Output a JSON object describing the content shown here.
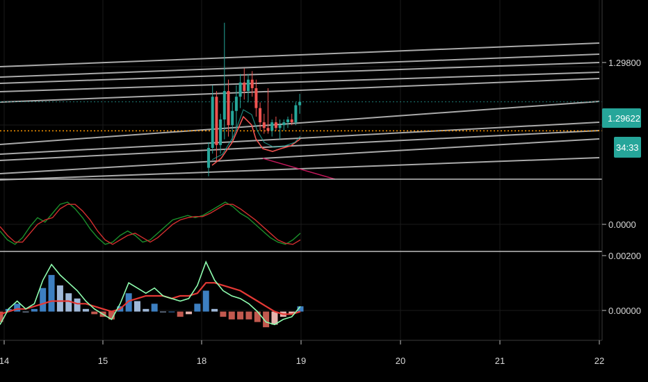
{
  "colors": {
    "background": "#000000",
    "grid": "#1a1a1a",
    "axis_line": "#3a3a3a",
    "pane_separator": "#bfbfbf",
    "channel": "#c8c8c8",
    "bull": "#26a69a",
    "bear": "#ef5350",
    "price_tag": "#26a69a",
    "orange_dotted": "#ff9800",
    "teal_dotted": "#1f7f78",
    "magenta": "#c2185b",
    "stoch_k": "#1b8f2b",
    "stoch_d": "#d32f2f",
    "macd_line": "#8fffb0",
    "signal_line": "#e53935",
    "hist_pos": "#3d7fc1",
    "hist_pos_light": "#9fb8d8",
    "hist_neg": "#c2594f",
    "hist_neg_light": "#e6b4ae"
  },
  "price_axis": {
    "labels": [
      "1.29800",
      "1.29622",
      "34:33"
    ],
    "current_price": "1.29622",
    "countdown": "34:33"
  },
  "stoch_axis": {
    "labels": [
      "0.0000"
    ]
  },
  "macd_axis": {
    "labels": [
      "0.00200",
      "0.00000"
    ]
  },
  "time_axis": {
    "labels": [
      "14",
      "15",
      "18",
      "19",
      "20",
      "21",
      "22"
    ]
  },
  "chart_data": [
    {
      "type": "candlestick",
      "pane": "price",
      "y_ticks": [
        1.298
      ],
      "ylim": [
        1.2935,
        1.2998
      ],
      "current_price": 1.29622,
      "horizontal_level": 1.2952,
      "candles": [
        {
          "o": 1.2939,
          "h": 1.2948,
          "l": 1.2936,
          "c": 1.2946
        },
        {
          "o": 1.2946,
          "h": 1.2968,
          "l": 1.2944,
          "c": 1.2964
        },
        {
          "o": 1.2964,
          "h": 1.2966,
          "l": 1.2941,
          "c": 1.2947
        },
        {
          "o": 1.2947,
          "h": 1.2958,
          "l": 1.2944,
          "c": 1.2956
        },
        {
          "o": 1.2956,
          "h": 1.299,
          "l": 1.2949,
          "c": 1.2966
        },
        {
          "o": 1.2966,
          "h": 1.297,
          "l": 1.295,
          "c": 1.2954
        },
        {
          "o": 1.2954,
          "h": 1.2962,
          "l": 1.2948,
          "c": 1.2959
        },
        {
          "o": 1.2959,
          "h": 1.2968,
          "l": 1.2952,
          "c": 1.2964
        },
        {
          "o": 1.2964,
          "h": 1.2972,
          "l": 1.296,
          "c": 1.2969
        },
        {
          "o": 1.2969,
          "h": 1.2974,
          "l": 1.2963,
          "c": 1.2966
        },
        {
          "o": 1.2966,
          "h": 1.2972,
          "l": 1.2962,
          "c": 1.297
        },
        {
          "o": 1.297,
          "h": 1.2973,
          "l": 1.2964,
          "c": 1.2967
        },
        {
          "o": 1.2967,
          "h": 1.297,
          "l": 1.2957,
          "c": 1.296
        },
        {
          "o": 1.296,
          "h": 1.2962,
          "l": 1.2952,
          "c": 1.2955
        },
        {
          "o": 1.2955,
          "h": 1.2958,
          "l": 1.2951,
          "c": 1.2953
        },
        {
          "o": 1.2953,
          "h": 1.2967,
          "l": 1.2951,
          "c": 1.2952
        },
        {
          "o": 1.2952,
          "h": 1.2956,
          "l": 1.295,
          "c": 1.2955
        },
        {
          "o": 1.2955,
          "h": 1.2957,
          "l": 1.2952,
          "c": 1.2953
        },
        {
          "o": 1.2953,
          "h": 1.2956,
          "l": 1.2949,
          "c": 1.2954
        },
        {
          "o": 1.2954,
          "h": 1.2956,
          "l": 1.2952,
          "c": 1.2955
        },
        {
          "o": 1.2955,
          "h": 1.2957,
          "l": 1.2953,
          "c": 1.2956
        },
        {
          "o": 1.2956,
          "h": 1.2958,
          "l": 1.2954,
          "c": 1.2955
        },
        {
          "o": 1.2955,
          "h": 1.2962,
          "l": 1.2954,
          "c": 1.2961
        },
        {
          "o": 1.2961,
          "h": 1.2965,
          "l": 1.2958,
          "c": 1.29622
        }
      ]
    },
    {
      "type": "line",
      "pane": "stochastic",
      "y_ticks": [
        0.0
      ],
      "series": [
        {
          "color": "stoch_k",
          "values": [
            -0.3,
            -0.7,
            -0.9,
            -0.6,
            -0.1,
            0.3,
            0.1,
            0.5,
            0.9,
            1.0,
            0.7,
            0.3,
            -0.2,
            -0.6,
            -0.9,
            -0.8,
            -0.5,
            -0.3,
            -0.5,
            -0.8,
            -0.7,
            -0.4,
            -0.1,
            0.2,
            0.3,
            0.4,
            0.3,
            0.4,
            0.6,
            0.8,
            1.0,
            0.8,
            0.5,
            0.3,
            0.0,
            -0.3,
            -0.6,
            -0.8,
            -0.9,
            -0.7,
            -0.4
          ]
        },
        {
          "color": "stoch_d",
          "values": [
            -0.1,
            -0.5,
            -0.8,
            -0.8,
            -0.4,
            0.0,
            0.2,
            0.3,
            0.7,
            0.9,
            0.9,
            0.6,
            0.2,
            -0.3,
            -0.7,
            -0.9,
            -0.7,
            -0.5,
            -0.4,
            -0.6,
            -0.8,
            -0.6,
            -0.3,
            0.0,
            0.2,
            0.3,
            0.35,
            0.35,
            0.5,
            0.7,
            0.9,
            0.9,
            0.7,
            0.45,
            0.2,
            -0.1,
            -0.4,
            -0.7,
            -0.85,
            -0.9,
            -0.7
          ]
        }
      ]
    },
    {
      "type": "macd",
      "pane": "macd",
      "y_ticks": [
        0.002,
        0.0
      ],
      "ylim": [
        -0.0011,
        0.0023
      ],
      "macd_line": [
        -0.0005,
        0.0001,
        0.0004,
        0.0001,
        0.0003,
        0.0012,
        0.0018,
        0.0014,
        0.0011,
        0.0008,
        0.0004,
        0.0001,
        -0.0001,
        -0.0003,
        0.0003,
        0.0011,
        0.0009,
        0.0007,
        0.0009,
        0.0006,
        0.0005,
        0.0004,
        0.0005,
        0.001,
        0.0019,
        0.0012,
        0.0008,
        0.0006,
        0.0005,
        0.0003,
        0.0,
        -0.0004,
        -0.0005,
        -0.0003,
        -0.0002,
        0.0002
      ],
      "signal_line": [
        -0.0001,
        0.0,
        0.0001,
        0.0001,
        0.0002,
        0.0003,
        0.0004,
        0.0004,
        0.0004,
        0.0003,
        0.0003,
        0.0002,
        0.0001,
        0.0,
        0.0001,
        0.0004,
        0.0005,
        0.0006,
        0.0006,
        0.0006,
        0.0005,
        0.0006,
        0.0006,
        0.0007,
        0.0011,
        0.0011,
        0.001,
        0.0009,
        0.0008,
        0.0006,
        0.0004,
        0.0002,
        0.0,
        -0.0001,
        -0.0001,
        0.0
      ],
      "histogram": [
        -0.0004,
        0.0001,
        0.0003,
        0.0,
        0.0001,
        0.0009,
        0.0014,
        0.001,
        0.0007,
        0.0005,
        0.0001,
        -0.0001,
        -0.0002,
        -0.0003,
        0.0002,
        0.0007,
        0.0004,
        0.0001,
        0.0003,
        0.0,
        0.0,
        -0.0002,
        -0.0001,
        0.0003,
        0.0008,
        0.0001,
        -0.0002,
        -0.0003,
        -0.0003,
        -0.0003,
        -0.0004,
        -0.0006,
        -0.0005,
        -0.0002,
        -0.0001,
        0.0002
      ]
    }
  ]
}
